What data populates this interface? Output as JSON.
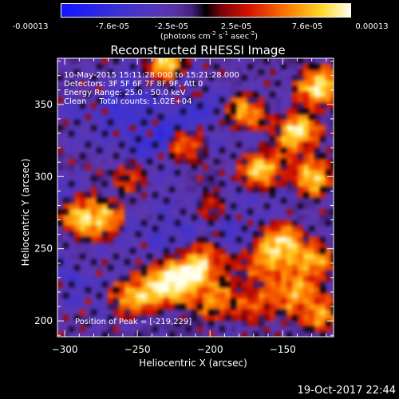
{
  "colorbar": {
    "ticks": [
      "-0.00013",
      "-7.6e-05",
      "-2.5e-05",
      "2.5e-05",
      "7.6e-05",
      "0.00013"
    ],
    "units_prefix": "(photons cm",
    "units_sup1": "-2",
    "units_mid1": " s",
    "units_sup2": "-1",
    "units_mid2": " asec",
    "units_sup3": "-2",
    "units_suffix": ")"
  },
  "chart_data": {
    "type": "heatmap",
    "title": "Reconstructed RHESSI Image",
    "xlabel": "Heliocentric X (arcsec)",
    "ylabel": "Heliocentric Y (arcsec)",
    "xlim": [
      -305,
      -115
    ],
    "ylim": [
      189,
      382
    ],
    "x_ticks": [
      -300,
      -250,
      -200,
      -150
    ],
    "y_ticks": [
      200,
      250,
      300,
      350
    ],
    "colorbar_range": [
      -0.00013,
      0.00013
    ],
    "annotations": [
      "10-May-2015 15:11:28.000 to 15:21:28.000",
      "Detectors: 3F 5F 6F 7F 8F 9F, Att 0",
      "Energy Range: 25.0 - 50.0 keV",
      "Clean     Total counts: 1.02E+04"
    ],
    "peak_label": "Position of Peak = [-219,229]",
    "peak_position": [
      -219,
      229
    ],
    "bright_regions": [
      {
        "x": -125,
        "y": 362,
        "intensity": 1.0
      },
      {
        "x": -140,
        "y": 330,
        "intensity": 0.9
      },
      {
        "x": -165,
        "y": 305,
        "intensity": 0.85
      },
      {
        "x": -130,
        "y": 300,
        "intensity": 0.8
      },
      {
        "x": -175,
        "y": 345,
        "intensity": 0.6
      },
      {
        "x": -150,
        "y": 255,
        "intensity": 0.8
      },
      {
        "x": -130,
        "y": 240,
        "intensity": 0.7
      },
      {
        "x": -165,
        "y": 240,
        "intensity": 0.65
      },
      {
        "x": -145,
        "y": 220,
        "intensity": 0.7
      },
      {
        "x": -125,
        "y": 205,
        "intensity": 0.6
      },
      {
        "x": -170,
        "y": 210,
        "intensity": 0.5
      },
      {
        "x": -219,
        "y": 229,
        "intensity": 1.0
      },
      {
        "x": -238,
        "y": 222,
        "intensity": 0.85
      },
      {
        "x": -205,
        "y": 240,
        "intensity": 0.8
      },
      {
        "x": -255,
        "y": 215,
        "intensity": 0.6
      },
      {
        "x": -198,
        "y": 215,
        "intensity": 0.55
      },
      {
        "x": -288,
        "y": 272,
        "intensity": 0.75
      },
      {
        "x": -272,
        "y": 270,
        "intensity": 0.55
      },
      {
        "x": -230,
        "y": 380,
        "intensity": 0.75
      },
      {
        "x": -215,
        "y": 320,
        "intensity": 0.45
      },
      {
        "x": -255,
        "y": 300,
        "intensity": 0.35
      },
      {
        "x": -200,
        "y": 280,
        "intensity": 0.3
      }
    ],
    "dim_regions": [
      {
        "x": -240,
        "y": 330,
        "intensity": 0.8
      },
      {
        "x": -210,
        "y": 350,
        "intensity": 0.6
      },
      {
        "x": -270,
        "y": 345,
        "intensity": 0.55
      },
      {
        "x": -285,
        "y": 220,
        "intensity": 0.5
      },
      {
        "x": -180,
        "y": 265,
        "intensity": 0.5
      },
      {
        "x": -240,
        "y": 260,
        "intensity": 0.45
      }
    ]
  },
  "footer": {
    "date": "19-Oct-2017 22:44"
  }
}
